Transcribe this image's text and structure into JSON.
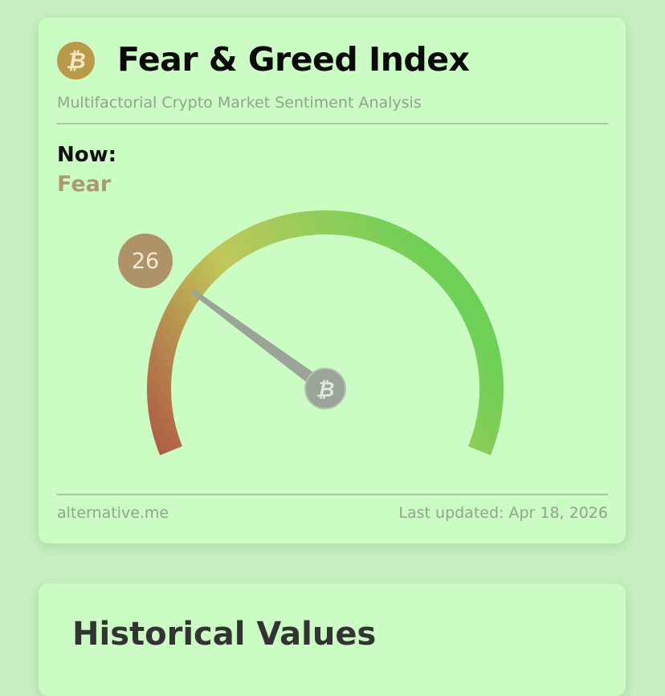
{
  "header": {
    "logo_icon": "bitcoin-icon",
    "title": "Fear & Greed Index",
    "subtitle": "Multifactorial Crypto Market Sentiment Analysis"
  },
  "current": {
    "label": "Now:",
    "classification": "Fear",
    "value": "26",
    "value_numeric": 26,
    "scale_min": 0,
    "scale_max": 100
  },
  "gauge": {
    "needle_icon": "bitcoin-icon",
    "color_low": "#b05d45",
    "color_mid": "#c0c85a",
    "color_high": "#6fd058"
  },
  "footer": {
    "source": "alternative.me",
    "last_updated": "Last updated: Apr 18, 2026"
  },
  "historical": {
    "title": "Historical Values"
  }
}
